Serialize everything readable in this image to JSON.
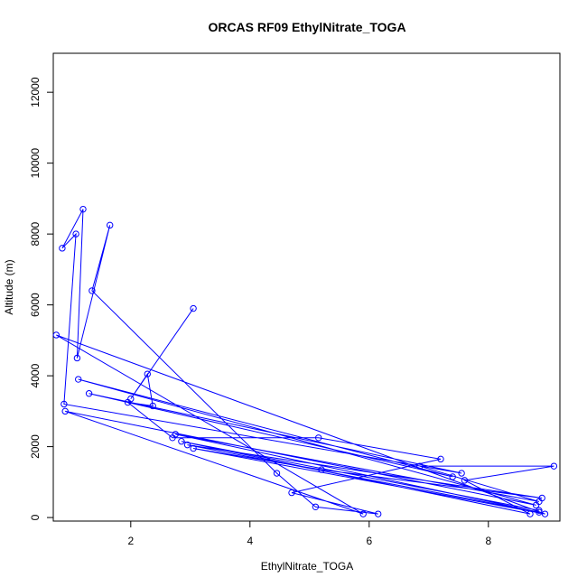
{
  "chart_data": {
    "type": "line",
    "title": "ORCAS RF09 EthylNitrate_TOGA",
    "xlabel": "EthylNitrate_TOGA",
    "ylabel": "Altitude (m)",
    "xlim": [
      0.7,
      9.2
    ],
    "ylim": [
      -100,
      13100
    ],
    "x_ticks": [
      2,
      4,
      6,
      8
    ],
    "y_ticks": [
      0,
      2000,
      4000,
      6000,
      8000,
      10000,
      12000
    ],
    "grid": false,
    "legend": "none",
    "color": "#0000ff",
    "series": [
      {
        "points": [
          [
            3.05,
            5900
          ],
          [
            2.0,
            3350
          ],
          [
            2.28,
            4050
          ],
          [
            2.37,
            3150
          ],
          [
            1.95,
            3250
          ],
          [
            2.7,
            2250
          ],
          [
            5.15,
            2250
          ],
          [
            7.2,
            1650
          ],
          [
            4.7,
            700
          ],
          [
            6.15,
            100
          ],
          [
            5.1,
            300
          ],
          [
            4.45,
            1250
          ],
          [
            1.35,
            6400
          ],
          [
            1.65,
            8250
          ],
          [
            1.1,
            4500
          ],
          [
            1.2,
            8700
          ],
          [
            0.85,
            7600
          ],
          [
            1.08,
            8000
          ],
          [
            0.88,
            3200
          ],
          [
            7.55,
            1250
          ],
          [
            1.3,
            3500
          ],
          [
            7.4,
            1150
          ],
          [
            1.12,
            3900
          ],
          [
            8.8,
            350
          ],
          [
            0.9,
            3000
          ],
          [
            5.9,
            100
          ],
          [
            0.75,
            5150
          ],
          [
            8.95,
            100
          ],
          [
            3.05,
            1950
          ],
          [
            5.2,
            1350
          ],
          [
            8.9,
            550
          ],
          [
            2.95,
            2050
          ],
          [
            8.85,
            150
          ],
          [
            2.75,
            2350
          ],
          [
            8.85,
            450
          ],
          [
            6.85,
            1450
          ],
          [
            9.1,
            1450
          ],
          [
            7.6,
            1050
          ],
          [
            8.7,
            100
          ],
          [
            2.85,
            2150
          ],
          [
            8.85,
            200
          ]
        ]
      }
    ]
  }
}
